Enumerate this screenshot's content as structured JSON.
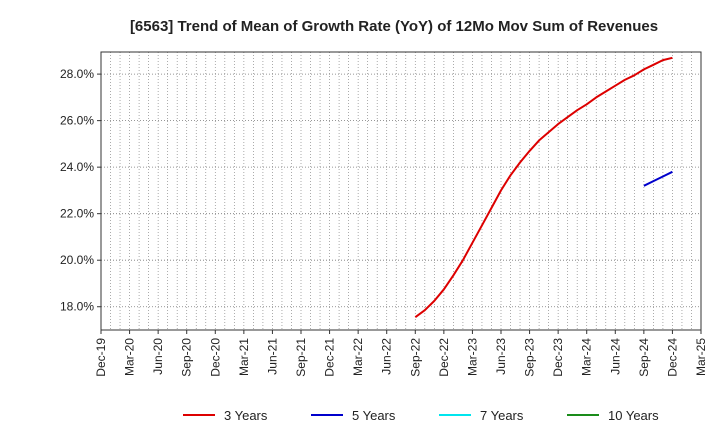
{
  "chart_data": {
    "type": "line",
    "title": "[6563]  Trend of Mean of Growth Rate (YoY) of 12Mo Mov Sum of Revenues",
    "xlabel": "",
    "ylabel": "",
    "grid": true,
    "legend_position": "bottom",
    "y_tick_labels": [
      "18.0%",
      "20.0%",
      "22.0%",
      "24.0%",
      "26.0%",
      "28.0%"
    ],
    "y_ticks": [
      18,
      20,
      22,
      24,
      26,
      28
    ],
    "ylim": [
      17.0,
      28.95
    ],
    "x_tick_labels": [
      "Dec-19",
      "Mar-20",
      "Jun-20",
      "Sep-20",
      "Dec-20",
      "Mar-21",
      "Jun-21",
      "Sep-21",
      "Dec-21",
      "Mar-22",
      "Jun-22",
      "Sep-22",
      "Dec-22",
      "Mar-23",
      "Jun-23",
      "Sep-23",
      "Dec-23",
      "Mar-24",
      "Jun-24",
      "Sep-24",
      "Dec-24",
      "Mar-25"
    ],
    "x_months_range": [
      0,
      63
    ],
    "series": [
      {
        "name": "3 Years",
        "color": "#dd0000",
        "x_months": [
          33,
          34,
          35,
          36,
          37,
          38,
          39,
          40,
          41,
          42,
          43,
          44,
          45,
          46,
          47,
          48,
          49,
          50,
          51,
          52,
          53,
          54,
          55,
          56,
          57,
          58,
          59,
          60
        ],
        "values": [
          17.55,
          17.85,
          18.25,
          18.75,
          19.35,
          20.0,
          20.75,
          21.5,
          22.25,
          23.0,
          23.65,
          24.2,
          24.7,
          25.15,
          25.5,
          25.85,
          26.15,
          26.45,
          26.7,
          27.0,
          27.25,
          27.5,
          27.75,
          27.95,
          28.2,
          28.4,
          28.6,
          28.7
        ]
      },
      {
        "name": "5 Years",
        "color": "#0000cc",
        "x_months": [
          57,
          58,
          59,
          60
        ],
        "values": [
          23.2,
          23.4,
          23.6,
          23.8
        ]
      },
      {
        "name": "7 Years",
        "color": "#00e5ee",
        "x_months": [],
        "values": []
      },
      {
        "name": "10 Years",
        "color": "#1a8c1a",
        "x_months": [],
        "values": []
      }
    ]
  }
}
